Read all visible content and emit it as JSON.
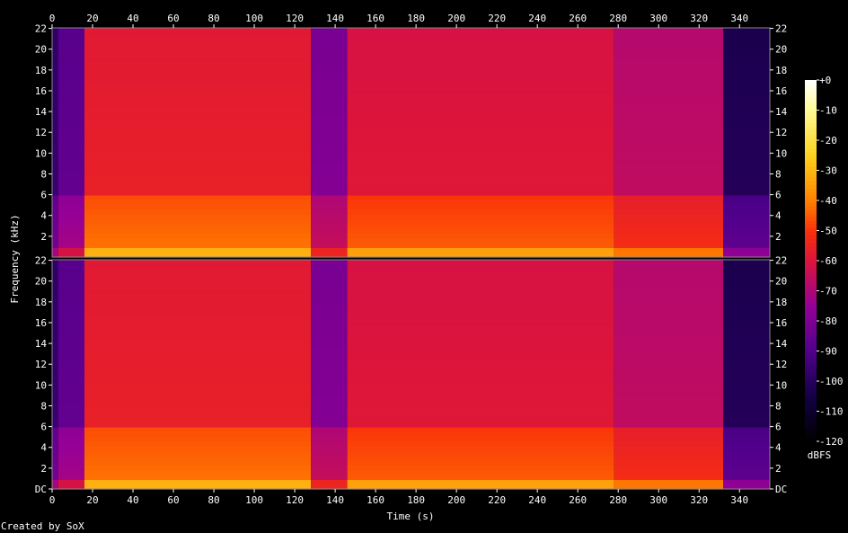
{
  "chart_data": {
    "type": "heatmap",
    "chart_kind": "spectrogram",
    "channels": 2,
    "xlabel": "Time (s)",
    "ylabel": "Frequency (kHz)",
    "xlim": [
      0,
      355
    ],
    "ylim_khz": [
      0,
      22.05
    ],
    "x_ticks": [
      "0",
      "20",
      "40",
      "60",
      "80",
      "100",
      "120",
      "140",
      "160",
      "180",
      "200",
      "220",
      "240",
      "260",
      "280",
      "300",
      "320",
      "340"
    ],
    "y_ticks_top": [
      "2",
      "4",
      "6",
      "8",
      "10",
      "12",
      "14",
      "16",
      "18",
      "20",
      "22"
    ],
    "y_ticks_bottom": [
      "DC",
      "2",
      "4",
      "6",
      "8",
      "10",
      "12",
      "14",
      "16",
      "18",
      "20",
      "22"
    ],
    "colorbar": {
      "label": "dBFS",
      "ticks": [
        "+0",
        "-10",
        "-20",
        "-30",
        "-40",
        "-50",
        "-60",
        "-70",
        "-80",
        "-90",
        "-100",
        "-110",
        "-120"
      ],
      "range_db": [
        -120,
        0
      ]
    },
    "segments_db": [
      {
        "t0": 0,
        "t1": 3,
        "level_db": -95
      },
      {
        "t0": 3,
        "t1": 16,
        "level_db": -85
      },
      {
        "t0": 16,
        "t1": 128,
        "level_db": -55
      },
      {
        "t0": 128,
        "t1": 146,
        "level_db": -78
      },
      {
        "t0": 146,
        "t1": 278,
        "level_db": -58
      },
      {
        "t0": 278,
        "t1": 332,
        "level_db": -65
      },
      {
        "t0": 332,
        "t1": 355,
        "level_db": -100
      }
    ],
    "low_band_cutoff_khz": 6
  },
  "footer": {
    "credit": "Created by SoX"
  }
}
